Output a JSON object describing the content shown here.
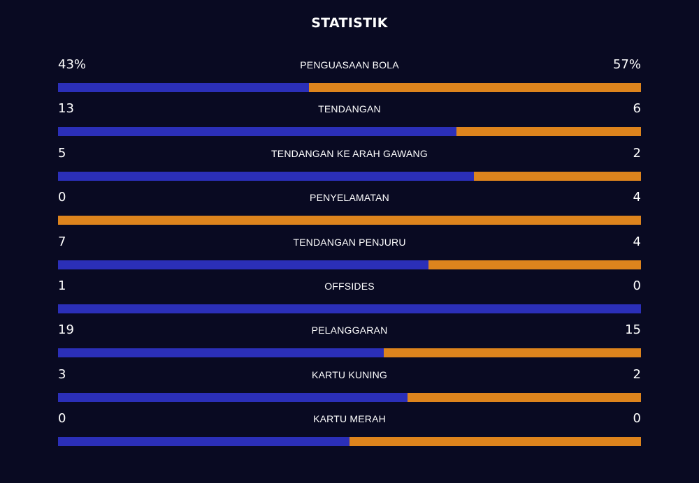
{
  "title": "STATISTIK",
  "colors": {
    "background": "#090a22",
    "home": "#2b2fb8",
    "away": "#dd841d",
    "text": "#ffffff"
  },
  "stats": [
    {
      "label": "PENGUASAAN BOLA",
      "home": "43%",
      "away": "57%",
      "home_share": 0.43
    },
    {
      "label": "TENDANGAN",
      "home": "13",
      "away": "6",
      "home_share": 0.684
    },
    {
      "label": "TENDANGAN KE ARAH GAWANG",
      "home": "5",
      "away": "2",
      "home_share": 0.714
    },
    {
      "label": "PENYELAMATAN",
      "home": "0",
      "away": "4",
      "home_share": 0
    },
    {
      "label": "TENDANGAN PENJURU",
      "home": "7",
      "away": "4",
      "home_share": 0.636
    },
    {
      "label": "OFFSIDES",
      "home": "1",
      "away": "0",
      "home_share": 1
    },
    {
      "label": "PELANGGARAN",
      "home": "19",
      "away": "15",
      "home_share": 0.559
    },
    {
      "label": "KARTU KUNING",
      "home": "3",
      "away": "2",
      "home_share": 0.6
    },
    {
      "label": "KARTU MERAH",
      "home": "0",
      "away": "0",
      "home_share": 0.5
    }
  ]
}
